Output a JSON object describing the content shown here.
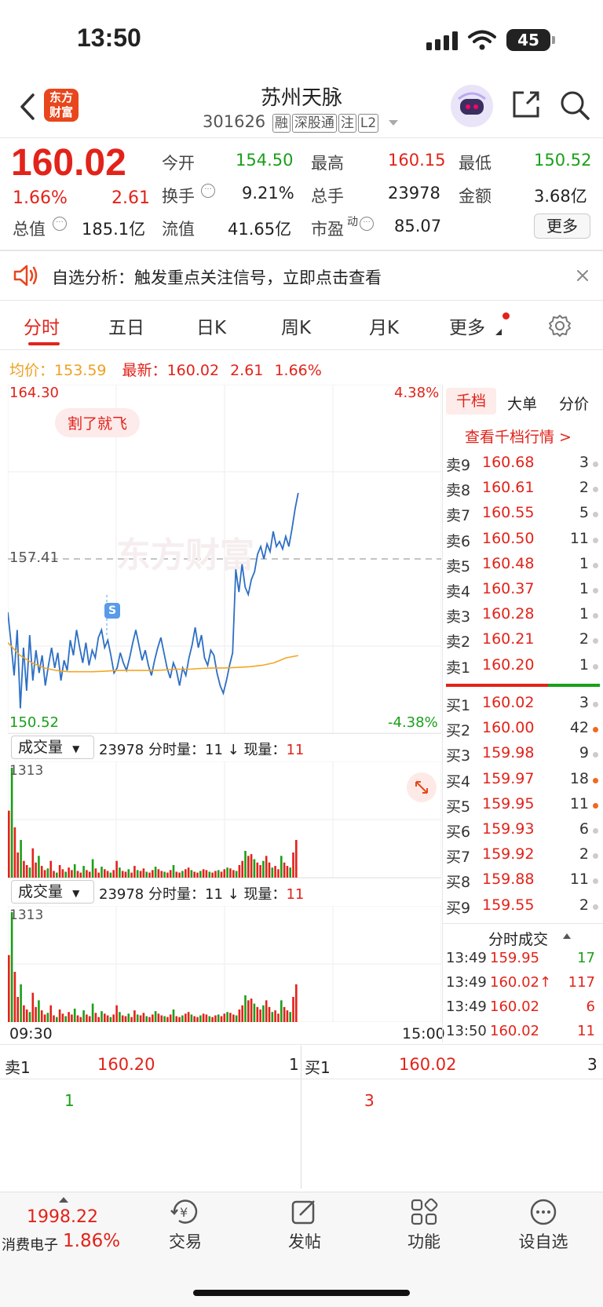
{
  "status_bar": {
    "time": "13:50",
    "battery": "45"
  },
  "header": {
    "logo_text": "东方财富",
    "stock_name": "苏州天脉",
    "stock_code": "301626",
    "tags": [
      "融",
      "深股通",
      "注",
      "L2"
    ]
  },
  "quote": {
    "price": "160.02",
    "change_pct": "1.66%",
    "change": "2.61",
    "open_label": "今开",
    "open": "154.50",
    "high_label": "最高",
    "high": "160.15",
    "low_label": "最低",
    "low": "150.52",
    "turnover_label": "换手",
    "turnover": "9.21%",
    "volume_label": "总手",
    "volume": "23978",
    "amount_label": "金额",
    "amount": "3.68亿",
    "mktcap_label": "总值",
    "mktcap": "185.1亿",
    "float_label": "流值",
    "float_cap": "41.65亿",
    "pe_label": "市盈",
    "pe_sup": "动",
    "pe": "85.07",
    "more_label": "更多"
  },
  "notice": {
    "text": "自选分析：触发重点关注信号，立即点击查看"
  },
  "tabs": [
    "分时",
    "五日",
    "日K",
    "周K",
    "月K",
    "更多"
  ],
  "info_line": {
    "avg_label": "均价：",
    "avg": "153.59",
    "latest_label": "最新：",
    "latest": "160.02",
    "change": "2.61",
    "change_pct": "1.66%"
  },
  "chart_data": {
    "type": "line",
    "ylim": [
      150.52,
      164.3
    ],
    "y_top_label": "164.30",
    "y_mid_label": "157.41",
    "y_bottom_label": "150.52",
    "pct_top_label": "4.38%",
    "pct_bottom_label": "-4.38%",
    "x_start_label": "09:30",
    "x_end_label": "15:00",
    "badge": "割了就飞",
    "signal_marker": "S",
    "watermark": "东方财富",
    "series": [
      {
        "values": [
          155.3,
          154.1,
          152.8,
          154.6,
          151.5,
          153.9,
          152.2,
          154.4,
          152.6,
          153.8,
          152.9,
          153.6,
          152.4,
          153.2,
          153.9,
          153.1,
          153.7,
          152.6,
          153.4,
          153.0,
          154.2,
          153.6,
          154.6,
          153.9,
          153.3,
          154.1,
          153.2,
          153.8,
          153.5,
          154.3,
          154.6,
          153.9,
          154.2,
          153.6,
          152.9,
          153.1,
          153.7,
          153.3,
          153.0,
          153.5,
          154.1,
          154.6,
          154.0,
          153.4,
          153.8,
          153.2,
          152.8,
          153.4,
          153.9,
          154.3,
          153.7,
          153.1,
          152.7,
          153.3,
          153.0,
          152.4,
          153.1,
          152.8,
          153.5,
          154.0,
          154.7,
          153.9,
          154.4,
          153.5,
          153.2,
          153.8,
          153.6,
          152.9,
          152.4,
          152.1,
          152.6,
          153.2,
          153.7,
          157.0,
          156.1,
          157.2,
          156.3,
          156.0,
          156.6,
          156.9,
          157.6,
          157.9,
          157.4,
          158.0,
          157.7,
          158.5,
          157.9,
          158.1,
          157.8,
          158.3,
          157.9,
          158.6,
          159.4,
          160.02
        ]
      },
      {
        "values": [
          154.1,
          153.6,
          153.3,
          153.1,
          153.0,
          152.95,
          152.95,
          152.95,
          152.97,
          153.0,
          153.0,
          153.0,
          153.0,
          153.02,
          153.05,
          153.05,
          153.08,
          153.1,
          153.1,
          153.12,
          153.15,
          153.2,
          153.3,
          153.5,
          153.59
        ]
      }
    ]
  },
  "volume_panel": {
    "selector": "成交量",
    "total": "23978",
    "bar_label": "分时量：",
    "bar_value": "11",
    "now_label": "现量：",
    "now_value": "11",
    "max_label": "1313",
    "bars": [
      800,
      1313,
      600,
      300,
      450,
      200,
      150,
      120,
      350,
      180,
      260,
      140,
      90,
      110,
      200,
      80,
      60,
      150,
      100,
      70,
      120,
      90,
      160,
      80,
      60,
      140,
      90,
      70,
      220,
      110,
      60,
      130,
      100,
      80,
      60,
      90,
      200,
      120,
      80,
      70,
      100,
      60,
      140,
      90,
      80,
      110,
      70,
      60,
      90,
      130,
      100,
      80,
      70,
      60,
      90,
      150,
      70,
      60,
      80,
      100,
      120,
      90,
      70,
      60,
      80,
      100,
      90,
      70,
      60,
      80,
      90,
      70,
      100,
      120,
      110,
      90,
      80,
      150,
      200,
      320,
      260,
      280,
      220,
      180,
      150,
      200,
      260,
      180,
      120,
      140,
      100,
      260,
      180,
      140,
      120,
      300,
      450
    ]
  },
  "order_book": {
    "tabs": [
      "千档",
      "大单",
      "分价"
    ],
    "link": "查看千档行情 >",
    "sells": [
      {
        "label": "卖9",
        "price": "160.68",
        "vol": "3"
      },
      {
        "label": "卖8",
        "price": "160.61",
        "vol": "2"
      },
      {
        "label": "卖7",
        "price": "160.55",
        "vol": "5"
      },
      {
        "label": "卖6",
        "price": "160.50",
        "vol": "11"
      },
      {
        "label": "卖5",
        "price": "160.48",
        "vol": "1"
      },
      {
        "label": "卖4",
        "price": "160.37",
        "vol": "1"
      },
      {
        "label": "卖3",
        "price": "160.28",
        "vol": "1"
      },
      {
        "label": "卖2",
        "price": "160.21",
        "vol": "2"
      },
      {
        "label": "卖1",
        "price": "160.20",
        "vol": "1"
      }
    ],
    "buys": [
      {
        "label": "买1",
        "price": "160.02",
        "vol": "3"
      },
      {
        "label": "买2",
        "price": "160.00",
        "vol": "42"
      },
      {
        "label": "买3",
        "price": "159.98",
        "vol": "9"
      },
      {
        "label": "买4",
        "price": "159.97",
        "vol": "18"
      },
      {
        "label": "买5",
        "price": "159.95",
        "vol": "11"
      },
      {
        "label": "买6",
        "price": "159.93",
        "vol": "6"
      },
      {
        "label": "买7",
        "price": "159.92",
        "vol": "2"
      },
      {
        "label": "买8",
        "price": "159.88",
        "vol": "11"
      },
      {
        "label": "买9",
        "price": "159.55",
        "vol": "2"
      }
    ],
    "ticks_title": "分时成交",
    "ticks": [
      {
        "time": "13:49",
        "price": "159.95",
        "vol": "17"
      },
      {
        "time": "13:49",
        "price": "160.02↑",
        "vol": "117"
      },
      {
        "time": "13:49",
        "price": "160.02",
        "vol": "6"
      },
      {
        "time": "13:50",
        "price": "160.02",
        "vol": "11"
      }
    ]
  },
  "bottom_quote": {
    "sell_label": "卖1",
    "sell_price": "160.20",
    "sell_vol": "1",
    "sell_sub": "1",
    "buy_label": "买1",
    "buy_price": "160.02",
    "buy_vol": "3",
    "buy_sub": "3"
  },
  "bottom_nav": {
    "index_value": "1998.22",
    "index_name": "消费电子",
    "index_pct": "1.86%",
    "items": [
      "交易",
      "发帖",
      "功能",
      "设自选"
    ]
  }
}
